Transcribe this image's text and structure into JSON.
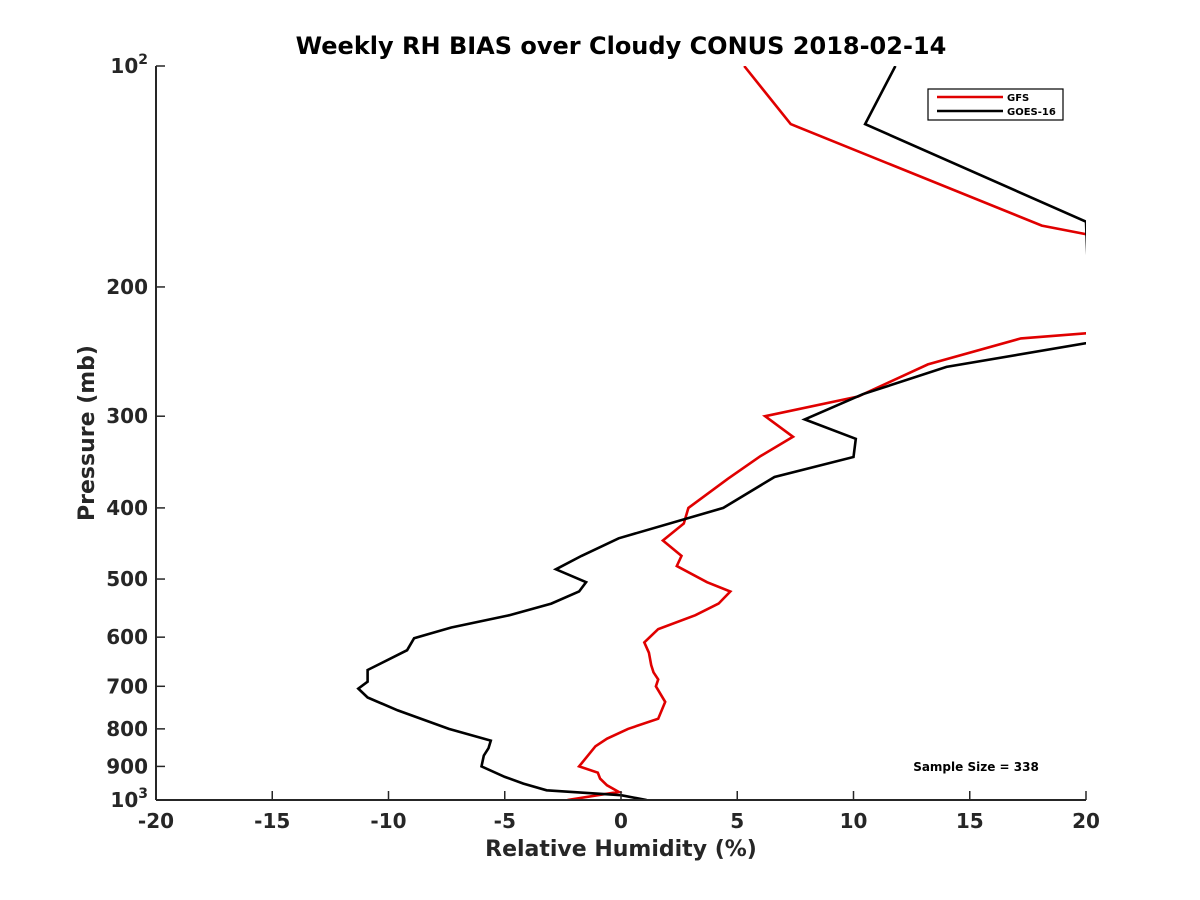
{
  "chart_data": {
    "type": "line",
    "title": "Weekly RH BIAS over Cloudy CONUS 2018-02-14",
    "xlabel": "Relative Humidity (%)",
    "ylabel": "Pressure (mb)",
    "xlim": [
      -20,
      20
    ],
    "ylim": [
      100,
      1000
    ],
    "yscale": "log",
    "y_reversed": true,
    "grid": false,
    "legend_position": "top-right",
    "xticks": [
      -20,
      -15,
      -10,
      -5,
      0,
      5,
      10,
      15,
      20
    ],
    "yticks": [
      {
        "value": 100,
        "base": "10",
        "exp": "2"
      },
      {
        "value": 200,
        "base": "200",
        "exp": ""
      },
      {
        "value": 300,
        "base": "300",
        "exp": ""
      },
      {
        "value": 400,
        "base": "400",
        "exp": ""
      },
      {
        "value": 500,
        "base": "500",
        "exp": ""
      },
      {
        "value": 600,
        "base": "600",
        "exp": ""
      },
      {
        "value": 700,
        "base": "700",
        "exp": ""
      },
      {
        "value": 800,
        "base": "800",
        "exp": ""
      },
      {
        "value": 900,
        "base": "900",
        "exp": ""
      },
      {
        "value": 1000,
        "base": "10",
        "exp": "3"
      }
    ],
    "series": [
      {
        "name": "GFS",
        "color": "#e00000",
        "points": [
          [
            5.3,
            100
          ],
          [
            7.3,
            120
          ],
          [
            18.1,
            165
          ],
          [
            20.2,
            170
          ],
          [
            20.2,
            231
          ],
          [
            17.2,
            235
          ],
          [
            13.2,
            255
          ],
          [
            10.2,
            282
          ],
          [
            6.2,
            300
          ],
          [
            7.4,
            320
          ],
          [
            6.0,
            340
          ],
          [
            4.6,
            365
          ],
          [
            2.9,
            400
          ],
          [
            2.7,
            420
          ],
          [
            1.8,
            443
          ],
          [
            2.6,
            465
          ],
          [
            2.4,
            480
          ],
          [
            3.7,
            505
          ],
          [
            4.7,
            520
          ],
          [
            4.2,
            540
          ],
          [
            3.2,
            560
          ],
          [
            1.6,
            585
          ],
          [
            1.0,
            610
          ],
          [
            1.2,
            630
          ],
          [
            1.3,
            655
          ],
          [
            1.4,
            670
          ],
          [
            1.6,
            685
          ],
          [
            1.5,
            700
          ],
          [
            1.9,
            735
          ],
          [
            1.6,
            775
          ],
          [
            0.3,
            800
          ],
          [
            -0.6,
            825
          ],
          [
            -1.1,
            845
          ],
          [
            -1.8,
            900
          ],
          [
            -1.0,
            918
          ],
          [
            -0.9,
            935
          ],
          [
            -0.6,
            955
          ],
          [
            -0.1,
            975
          ],
          [
            -2.3,
            1000
          ]
        ]
      },
      {
        "name": "GOES-16",
        "color": "#000000",
        "points": [
          [
            11.8,
            100
          ],
          [
            10.5,
            120
          ],
          [
            20.0,
            163
          ],
          [
            20.2,
            238
          ],
          [
            14.0,
            257
          ],
          [
            10.4,
            280
          ],
          [
            7.9,
            303
          ],
          [
            10.1,
            322
          ],
          [
            10.0,
            341
          ],
          [
            6.6,
            363
          ],
          [
            4.4,
            400
          ],
          [
            -0.1,
            440
          ],
          [
            -1.7,
            465
          ],
          [
            -2.8,
            485
          ],
          [
            -1.5,
            505
          ],
          [
            -1.8,
            520
          ],
          [
            -3.0,
            540
          ],
          [
            -4.8,
            560
          ],
          [
            -7.3,
            582
          ],
          [
            -8.9,
            602
          ],
          [
            -9.2,
            625
          ],
          [
            -10.9,
            665
          ],
          [
            -10.9,
            690
          ],
          [
            -11.3,
            705
          ],
          [
            -10.9,
            725
          ],
          [
            -9.6,
            755
          ],
          [
            -7.4,
            800
          ],
          [
            -5.6,
            830
          ],
          [
            -5.7,
            850
          ],
          [
            -5.9,
            870
          ],
          [
            -6.0,
            900
          ],
          [
            -5.0,
            930
          ],
          [
            -4.2,
            950
          ],
          [
            -3.2,
            970
          ],
          [
            0.0,
            985
          ],
          [
            1.1,
            1000
          ]
        ]
      }
    ],
    "annotation": "Sample Size = 338"
  }
}
